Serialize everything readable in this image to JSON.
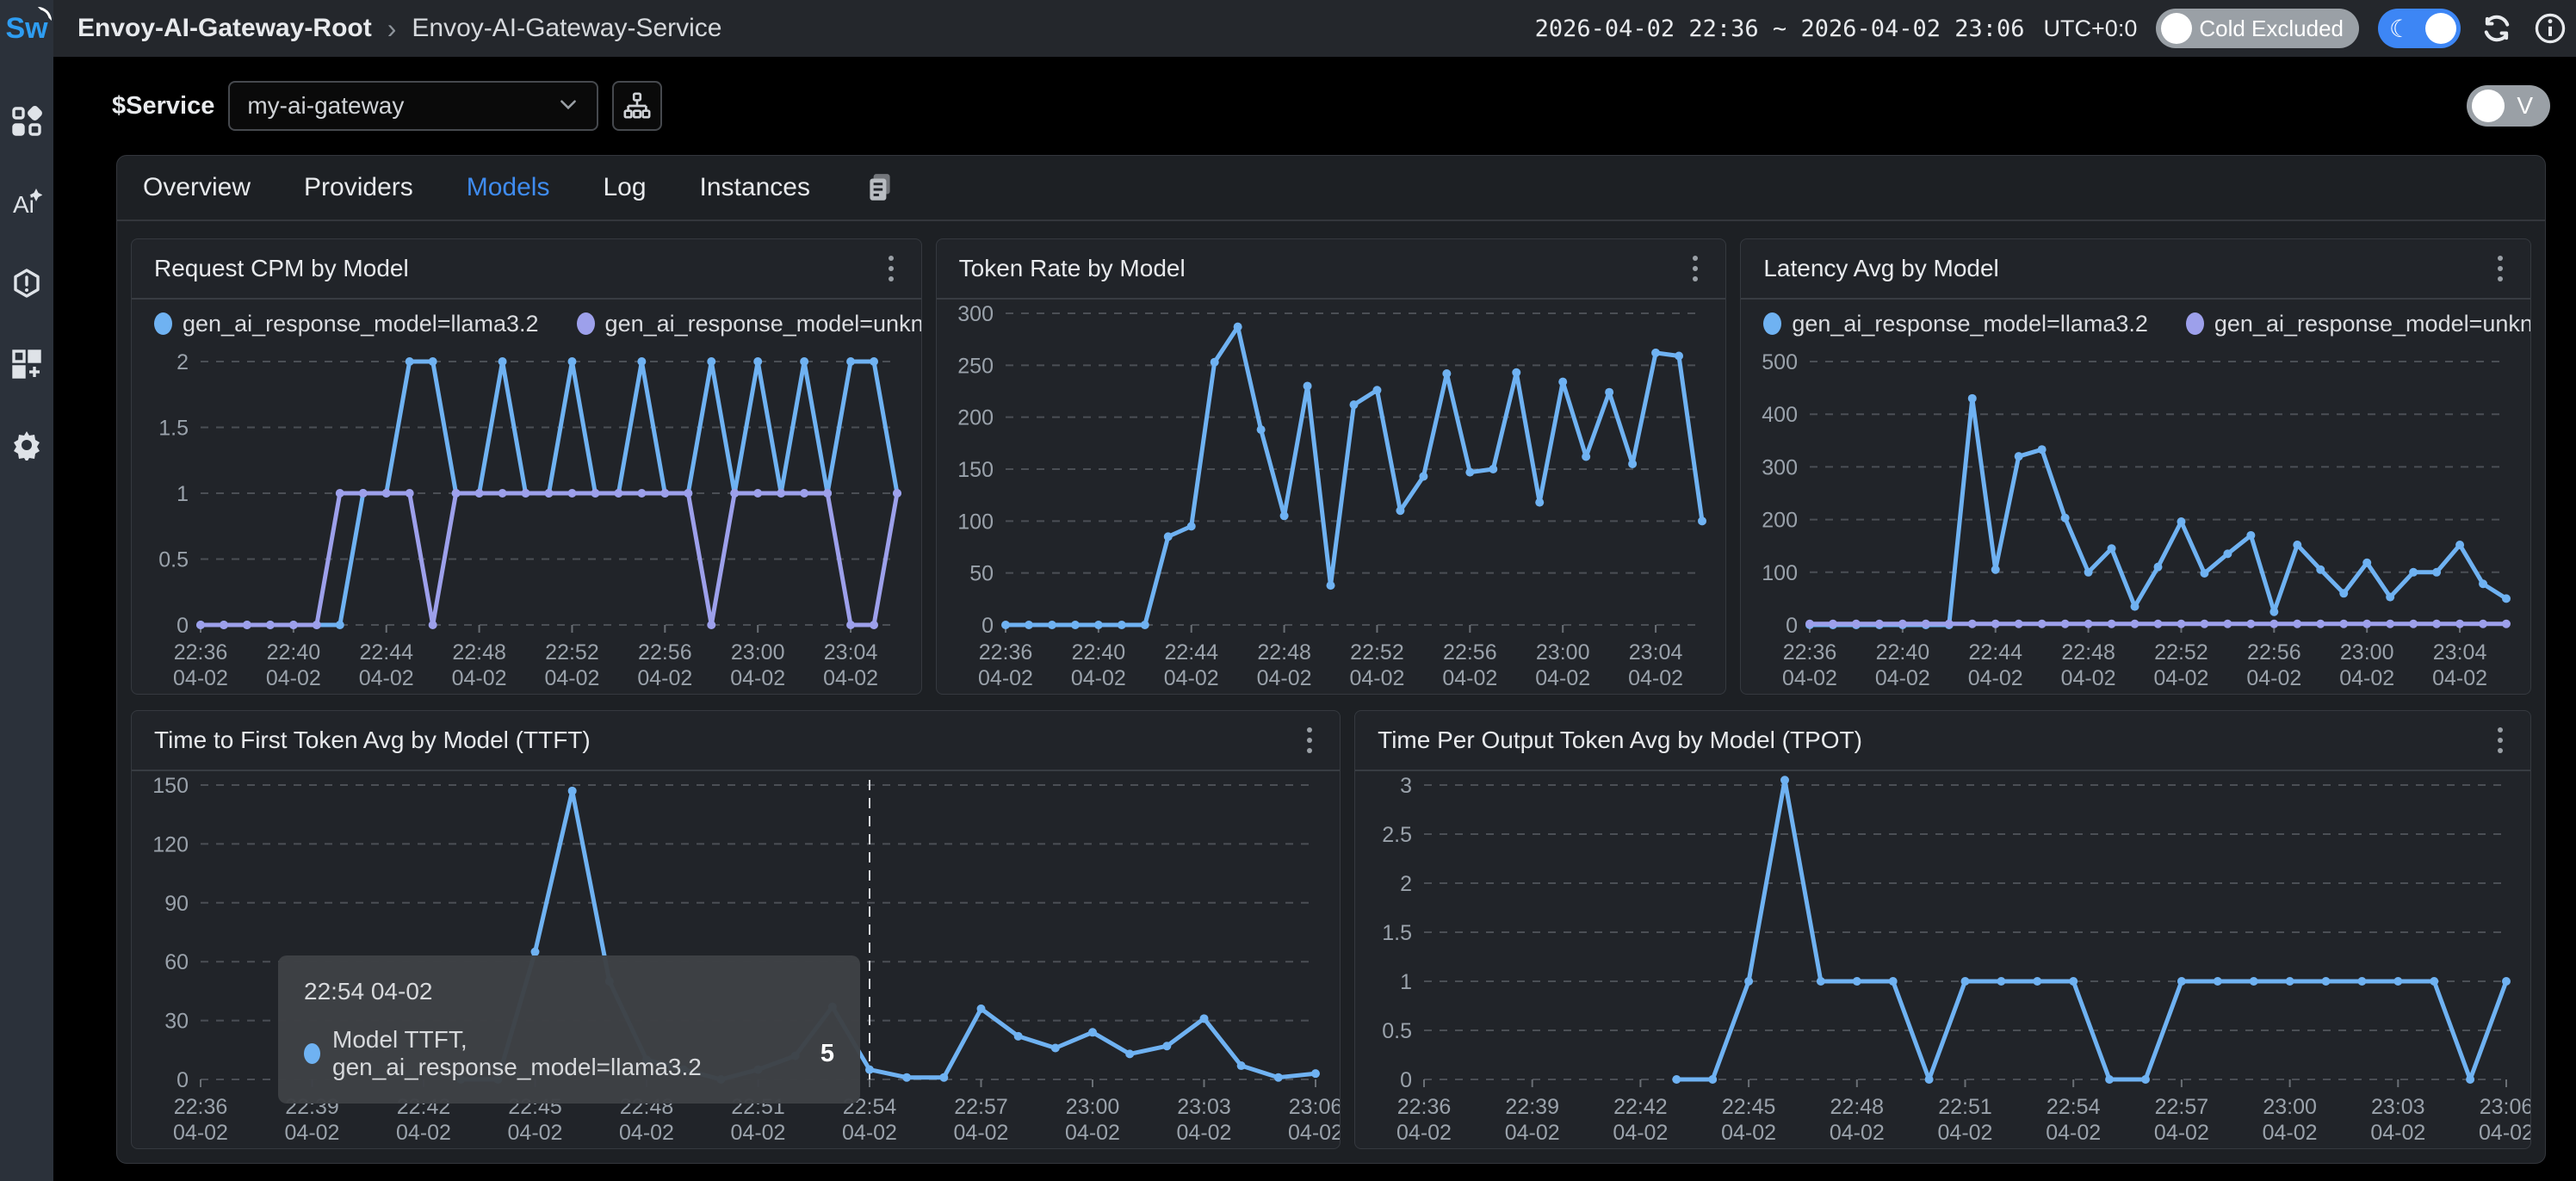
{
  "topbar": {
    "logo_text": "Sw",
    "breadcrumb_root": "Envoy-AI-Gateway-Root",
    "breadcrumb_sep": "›",
    "breadcrumb_current": "Envoy-AI-Gateway-Service",
    "time_range": "2026-04-02 22:36 ~ 2026-04-02 23:06",
    "utc_label": "UTC+0:0",
    "cold_excluded_label": "Cold Excluded"
  },
  "variable_bar": {
    "service_label": "$Service",
    "service_value": "my-ai-gateway",
    "view_toggle_label": "V"
  },
  "sidebar": {
    "items": [
      "dashboards",
      "ai-pipeline",
      "alerts",
      "marketplace",
      "settings"
    ]
  },
  "tabs": {
    "items": [
      {
        "label": "Overview",
        "active": false
      },
      {
        "label": "Providers",
        "active": false
      },
      {
        "label": "Models",
        "active": true
      },
      {
        "label": "Log",
        "active": false
      },
      {
        "label": "Instances",
        "active": false
      }
    ]
  },
  "colors": {
    "series_blue": "#6FB2F2",
    "series_purple": "#9DA0EB",
    "accent_blue": "#3f8cf0",
    "grid_line": "#5a5e64",
    "axis_text": "#9aa2ab",
    "crosshair": "#e8eaed"
  },
  "chart_shared": {
    "times": [
      "22:36",
      "22:37",
      "22:38",
      "22:39",
      "22:40",
      "22:41",
      "22:42",
      "22:43",
      "22:44",
      "22:45",
      "22:46",
      "22:47",
      "22:48",
      "22:49",
      "22:50",
      "22:51",
      "22:52",
      "22:53",
      "22:54",
      "22:55",
      "22:56",
      "22:57",
      "22:58",
      "22:59",
      "23:00",
      "23:01",
      "23:02",
      "23:03",
      "23:04",
      "23:05",
      "23:06"
    ],
    "date": "04-02"
  },
  "chart_data": [
    {
      "id": "0",
      "type": "line",
      "title": "Request CPM by Model",
      "y_ticks": [
        0,
        0.5,
        1,
        1.5,
        2
      ],
      "label_step": 4,
      "xlabel": "",
      "ylabel": "",
      "grid": true,
      "legend_position": "top-left",
      "series": [
        {
          "name": "gen_ai_response_model=llama3.2",
          "color": "#6FB2F2",
          "values": [
            0,
            0,
            0,
            0,
            0,
            0,
            0,
            1,
            1,
            2,
            2,
            1,
            1,
            2,
            1,
            1,
            2,
            1,
            1,
            2,
            1,
            1,
            2,
            1,
            2,
            1,
            2,
            1,
            2,
            2,
            1
          ]
        },
        {
          "name": "gen_ai_response_model=unknown",
          "color": "#9DA0EB",
          "values": [
            0,
            0,
            0,
            0,
            0,
            0,
            1,
            1,
            1,
            1,
            0,
            1,
            1,
            1,
            1,
            1,
            1,
            1,
            1,
            1,
            1,
            1,
            0,
            1,
            1,
            1,
            1,
            1,
            0,
            0,
            1
          ]
        }
      ]
    },
    {
      "id": "1",
      "type": "line",
      "title": "Token Rate by Model",
      "y_ticks": [
        0,
        50,
        100,
        150,
        200,
        250,
        300
      ],
      "label_step": 4,
      "xlabel": "",
      "ylabel": "",
      "grid": true,
      "legend_position": "none",
      "series": [
        {
          "name": "gen_ai_response_model=llama3.2",
          "color": "#6FB2F2",
          "values": [
            0,
            0,
            0,
            0,
            0,
            0,
            0,
            85,
            95,
            253,
            287,
            188,
            105,
            230,
            38,
            212,
            226,
            110,
            143,
            242,
            147,
            150,
            243,
            118,
            234,
            162,
            224,
            155,
            262,
            259,
            100
          ]
        }
      ]
    },
    {
      "id": "2",
      "type": "line",
      "title": "Latency Avg by Model",
      "y_ticks": [
        0,
        100,
        200,
        300,
        400,
        500
      ],
      "label_step": 4,
      "xlabel": "",
      "ylabel": "",
      "grid": true,
      "legend_position": "top-left",
      "series": [
        {
          "name": "gen_ai_response_model=llama3.2",
          "color": "#6FB2F2",
          "values": [
            0,
            0,
            0,
            0,
            0,
            0,
            0,
            430,
            105,
            320,
            333,
            203,
            100,
            145,
            35,
            110,
            196,
            98,
            135,
            170,
            25,
            152,
            105,
            60,
            118,
            53,
            100,
            100,
            152,
            78,
            50
          ]
        },
        {
          "name": "gen_ai_response_model=unknown",
          "color": "#9DA0EB",
          "values": [
            2,
            2,
            2,
            2,
            2,
            2,
            2,
            2,
            2,
            2,
            2,
            2,
            2,
            2,
            2,
            2,
            2,
            2,
            2,
            2,
            2,
            2,
            2,
            2,
            2,
            2,
            2,
            2,
            2,
            2,
            2
          ]
        }
      ]
    },
    {
      "id": "3",
      "type": "line",
      "title": "Time to First Token Avg by Model (TTFT)",
      "y_ticks": [
        0,
        30,
        60,
        90,
        120,
        150
      ],
      "label_step": 3,
      "xlabel": "",
      "ylabel": "",
      "grid": true,
      "legend_position": "none",
      "crosshair_index": 18,
      "series": [
        {
          "name": "Model TTFT, gen_ai_response_model=llama3.2",
          "color": "#6FB2F2",
          "values": [
            null,
            null,
            null,
            null,
            null,
            null,
            null,
            0,
            0,
            65,
            147,
            50,
            10,
            5,
            0,
            5,
            12,
            37,
            5,
            1,
            1,
            36,
            22,
            16,
            24,
            13,
            17,
            31,
            7,
            1,
            3
          ]
        }
      ],
      "tooltip": {
        "title": "22:54 04-02",
        "series_label": "Model TTFT, gen_ai_response_model=llama3.2",
        "value": "5"
      }
    },
    {
      "id": "4",
      "type": "line",
      "title": "Time Per Output Token Avg by Model (TPOT)",
      "y_ticks": [
        0,
        0.5,
        1,
        1.5,
        2,
        2.5,
        3
      ],
      "label_step": 3,
      "xlabel": "",
      "ylabel": "",
      "grid": true,
      "legend_position": "none",
      "series": [
        {
          "name": "gen_ai_response_model=llama3.2",
          "color": "#6FB2F2",
          "values": [
            null,
            null,
            null,
            null,
            null,
            null,
            null,
            0,
            0,
            1,
            3.05,
            1,
            1,
            1,
            0,
            1,
            1,
            1,
            1,
            0,
            0,
            1,
            1,
            1,
            1,
            1,
            1,
            1,
            1,
            0,
            1
          ]
        }
      ]
    }
  ]
}
